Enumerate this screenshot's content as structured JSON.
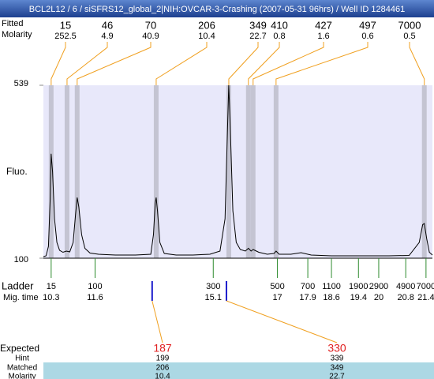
{
  "title": "BCL2L12 / 6 / siSFRS12_global_2|NIH:OVCAR-3-Crashing (2007-05-31 96hrs) / Well ID 1284461",
  "chart_data": {
    "type": "electropherogram",
    "y_label": "Fluo.",
    "ylim": [
      100,
      539
    ],
    "yticks": [
      100,
      539
    ],
    "xlim": [
      10.07,
      21.59
    ],
    "trace": {
      "color": "#000000",
      "x": [
        10.07,
        10.15,
        10.22,
        10.27,
        10.3,
        10.34,
        10.4,
        10.47,
        10.55,
        10.65,
        10.75,
        10.85,
        10.95,
        11.02,
        11.07,
        11.12,
        11.2,
        11.3,
        11.45,
        11.7,
        12.2,
        12.8,
        13.25,
        13.33,
        13.38,
        13.41,
        13.45,
        13.52,
        13.65,
        14.0,
        14.5,
        15.0,
        15.3,
        15.45,
        15.52,
        15.56,
        15.6,
        15.68,
        15.78,
        15.9,
        16.05,
        16.14,
        16.22,
        16.28,
        16.45,
        16.7,
        16.9,
        16.96,
        17.05,
        17.4,
        17.7,
        18.0,
        18.6,
        19.5,
        20.3,
        20.9,
        21.2,
        21.3,
        21.35,
        21.42,
        21.5,
        21.59
      ],
      "values": [
        104,
        106,
        130,
        250,
        365,
        320,
        200,
        140,
        120,
        115,
        118,
        116,
        140,
        210,
        254,
        230,
        160,
        125,
        113,
        110,
        108,
        108,
        110,
        160,
        240,
        254,
        220,
        140,
        112,
        108,
        108,
        110,
        118,
        200,
        420,
        539,
        440,
        220,
        140,
        122,
        118,
        125,
        118,
        122,
        115,
        110,
        112,
        118,
        110,
        110,
        114,
        108,
        106,
        106,
        106,
        107,
        140,
        185,
        188,
        150,
        115,
        108
      ]
    },
    "peak_row_labels": [
      "Fitted",
      "Molarity"
    ],
    "peaks": {
      "sizes": [
        15,
        46,
        70,
        206,
        349,
        410,
        427,
        497,
        7000
      ],
      "molarity": [
        252.5,
        4.9,
        40.9,
        10.4,
        22.7,
        0.8,
        1.6,
        0.6,
        0.5
      ],
      "time": [
        10.3,
        10.77,
        11.07,
        13.41,
        15.56,
        16.14,
        16.28,
        16.96,
        21.35
      ]
    },
    "ladder": {
      "label": "Ladder",
      "time_label": "Mig. time",
      "color": "#2e8b2e",
      "sizes": [
        15,
        100,
        300,
        500,
        700,
        1100,
        1900,
        2900,
        4900,
        7000
      ],
      "times": [
        10.3,
        11.6,
        15.1,
        17,
        17.9,
        18.6,
        19.4,
        20,
        20.8,
        21.4
      ]
    },
    "expected": {
      "row_labels": [
        "Expected",
        "Hint",
        "Matched",
        "Molarity"
      ],
      "expected": [
        187,
        330
      ],
      "hint": [
        199,
        339
      ],
      "matched": [
        206,
        349
      ],
      "molarity": [
        10.4,
        22.7
      ],
      "time": [
        13.29,
        15.49
      ]
    }
  }
}
